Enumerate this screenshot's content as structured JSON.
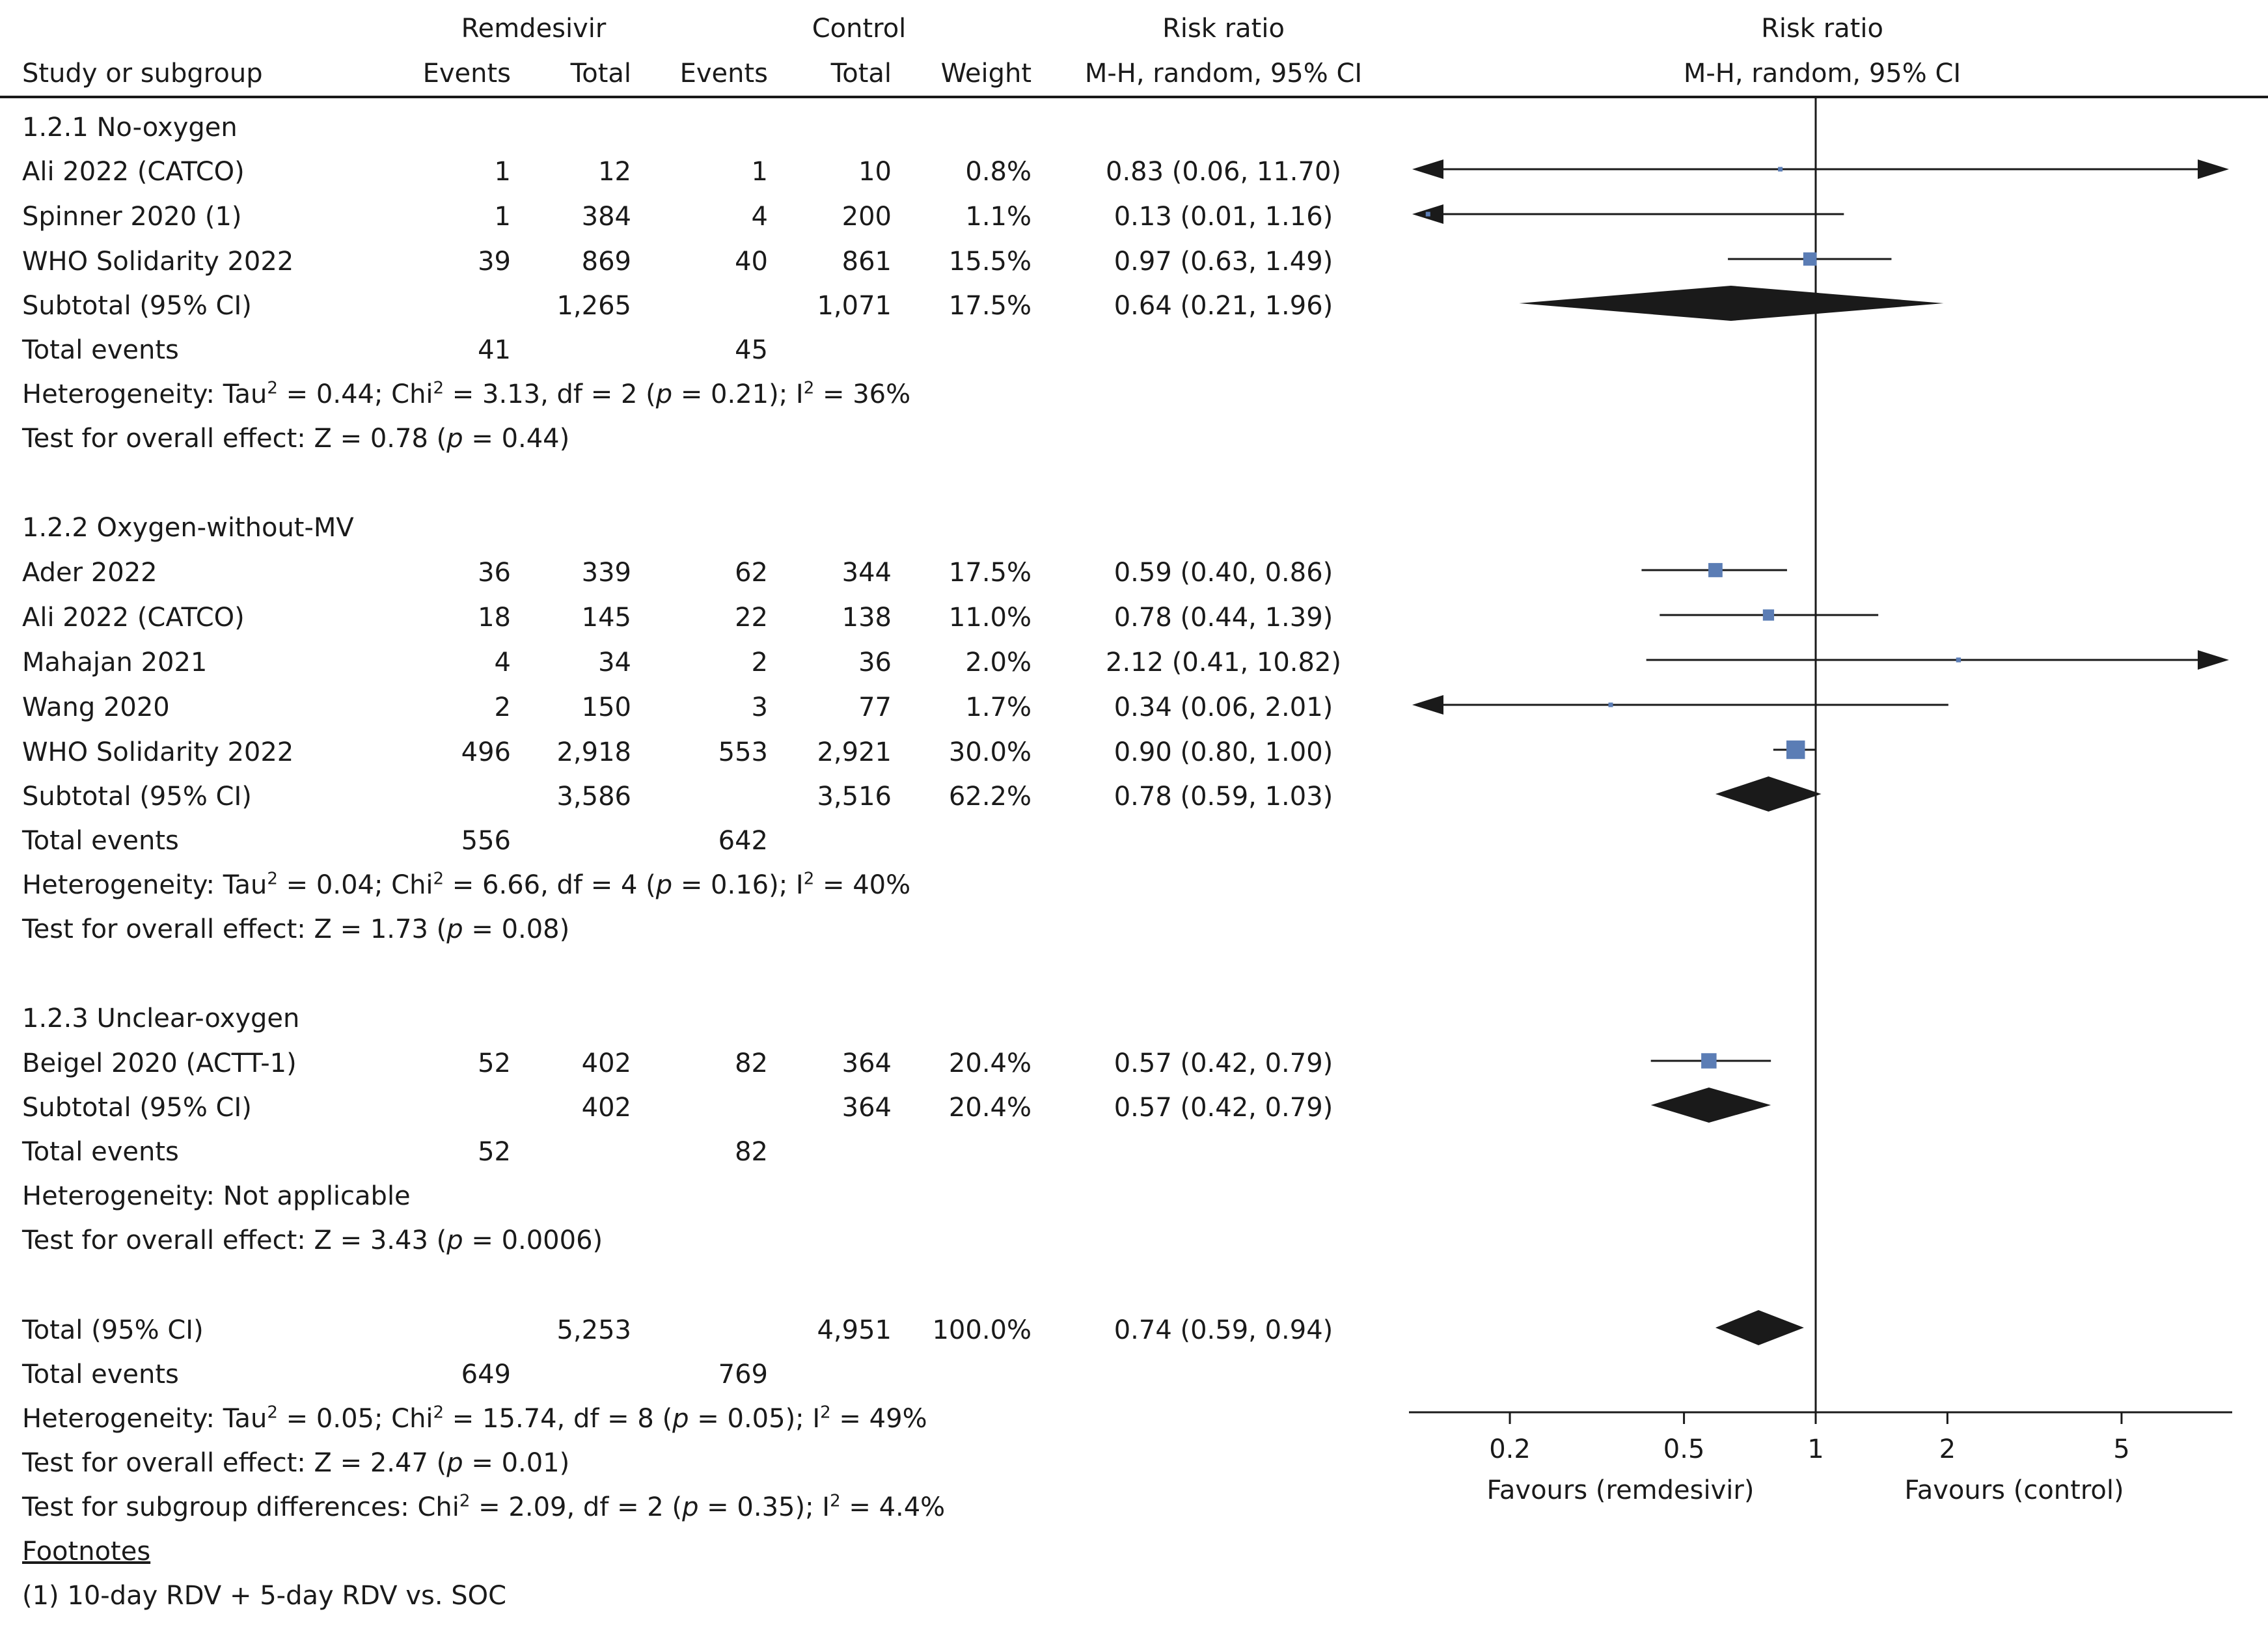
{
  "headers": {
    "remdesivir": "Remdesivir",
    "control": "Control",
    "risk_ratio_table": "Risk ratio",
    "risk_ratio_plot": "Risk ratio",
    "study": "Study or subgroup",
    "events1": "Events",
    "total1": "Total",
    "events2": "Events",
    "total2": "Total",
    "weight": "Weight",
    "method_table": "M-H, random, 95% CI",
    "method_plot": "M-H, random, 95% CI"
  },
  "groups": [
    {
      "title": "1.2.1 No-oxygen",
      "studies": [
        {
          "name": "Ali 2022 (CATCO)",
          "e1": "1",
          "t1": "12",
          "e2": "1",
          "t2": "10",
          "weight": "0.8%",
          "ci": "0.83 (0.06, 11.70)"
        },
        {
          "name": "Spinner 2020 (1)",
          "e1": "1",
          "t1": "384",
          "e2": "4",
          "t2": "200",
          "weight": "1.1%",
          "ci": "0.13 (0.01, 1.16)"
        },
        {
          "name": "WHO Solidarity 2022",
          "e1": "39",
          "t1": "869",
          "e2": "40",
          "t2": "861",
          "weight": "15.5%",
          "ci": "0.97 (0.63, 1.49)"
        }
      ],
      "subtotal": {
        "label": "Subtotal (95% CI)",
        "t1": "1,265",
        "t2": "1,071",
        "weight": "17.5%",
        "ci": "0.64 (0.21, 1.96)"
      },
      "total_events": {
        "label": "Total events",
        "e1": "41",
        "e2": "45"
      },
      "heterogeneity": {
        "prefix": "Heterogeneity: Tau",
        "a": " = 0.44; Chi",
        "b": " = 3.13, df = 2 (",
        "p": "p",
        "c": " = 0.21); I",
        "d": " = 36%"
      },
      "overall": {
        "prefix": "Test for overall effect: Z = 0.78 (",
        "p": "p",
        "suffix": " = 0.44)"
      }
    },
    {
      "title": "1.2.2 Oxygen-without-MV",
      "studies": [
        {
          "name": "Ader 2022",
          "e1": "36",
          "t1": "339",
          "e2": "62",
          "t2": "344",
          "weight": "17.5%",
          "ci": "0.59 (0.40, 0.86)"
        },
        {
          "name": "Ali 2022 (CATCO)",
          "e1": "18",
          "t1": "145",
          "e2": "22",
          "t2": "138",
          "weight": "11.0%",
          "ci": "0.78 (0.44, 1.39)"
        },
        {
          "name": "Mahajan 2021",
          "e1": "4",
          "t1": "34",
          "e2": "2",
          "t2": "36",
          "weight": "2.0%",
          "ci": "2.12 (0.41, 10.82)"
        },
        {
          "name": "Wang 2020",
          "e1": "2",
          "t1": "150",
          "e2": "3",
          "t2": "77",
          "weight": "1.7%",
          "ci": "0.34 (0.06, 2.01)"
        },
        {
          "name": "WHO Solidarity 2022",
          "e1": "496",
          "t1": "2,918",
          "e2": "553",
          "t2": "2,921",
          "weight": "30.0%",
          "ci": "0.90 (0.80, 1.00)"
        }
      ],
      "subtotal": {
        "label": "Subtotal (95% CI)",
        "t1": "3,586",
        "t2": "3,516",
        "weight": "62.2%",
        "ci": "0.78 (0.59, 1.03)"
      },
      "total_events": {
        "label": "Total events",
        "e1": "556",
        "e2": "642"
      },
      "heterogeneity": {
        "prefix": "Heterogeneity: Tau",
        "a": " = 0.04; Chi",
        "b": " = 6.66, df = 4 (",
        "p": "p",
        "c": " = 0.16); I",
        "d": " = 40%"
      },
      "overall": {
        "prefix": "Test for overall effect: Z = 1.73 (",
        "p": "p",
        "suffix": " = 0.08)"
      }
    },
    {
      "title": "1.2.3 Unclear-oxygen",
      "studies": [
        {
          "name": "Beigel 2020 (ACTT-1)",
          "e1": "52",
          "t1": "402",
          "e2": "82",
          "t2": "364",
          "weight": "20.4%",
          "ci": "0.57 (0.42, 0.79)"
        }
      ],
      "subtotal": {
        "label": "Subtotal (95% CI)",
        "t1": "402",
        "t2": "364",
        "weight": "20.4%",
        "ci": "0.57 (0.42, 0.79)"
      },
      "total_events": {
        "label": "Total events",
        "e1": "52",
        "e2": "82"
      },
      "heterogeneity_text": "Heterogeneity: Not applicable",
      "overall": {
        "prefix": "Test for overall effect: Z = 3.43 (",
        "p": "p",
        "suffix": " = 0.0006)"
      }
    }
  ],
  "total": {
    "label": "Total (95% CI)",
    "t1": "5,253",
    "t2": "4,951",
    "weight": "100.0%",
    "ci": "0.74 (0.59, 0.94)"
  },
  "total_events": {
    "label": "Total events",
    "e1": "649",
    "e2": "769"
  },
  "total_heterogeneity": {
    "prefix": "Heterogeneity: Tau",
    "a": " = 0.05; Chi",
    "b": " = 15.74, df = 8 (",
    "p": "p",
    "c": " = 0.05); I",
    "d": " = 49%"
  },
  "total_overall": {
    "prefix": "Test for overall effect: Z = 2.47 (",
    "p": "p",
    "suffix": " = 0.01)"
  },
  "subgroup_diff": {
    "prefix": "Test for subgroup differences: Chi",
    "a": " = 2.09, df = 2 (",
    "p": "p",
    "b": " = 0.35); I",
    "c": " = 4.4%"
  },
  "sup2": "2",
  "footnotes": {
    "label": "Footnotes",
    "items": [
      "(1) 10-day RDV + 5-day RDV vs. SOC"
    ]
  },
  "chart_data": {
    "type": "forest",
    "scale": "log",
    "xlim": [
      0.1,
      10
    ],
    "ticks": [
      0.2,
      0.5,
      1,
      2,
      5
    ],
    "tick_labels": [
      "0.2",
      "0.5",
      "1",
      "2",
      "5"
    ],
    "favours_left": "Favours (remdesivir)",
    "favours_right": "Favours (control)",
    "colors": {
      "square": "#5b7db5",
      "diamond": "#1a1a1a",
      "line": "#1a1a1a"
    },
    "studies": [
      {
        "group": 0,
        "rr": 0.83,
        "lo": 0.06,
        "hi": 11.7,
        "weight": 0.8
      },
      {
        "group": 0,
        "rr": 0.13,
        "lo": 0.01,
        "hi": 1.16,
        "weight": 1.1
      },
      {
        "group": 0,
        "rr": 0.97,
        "lo": 0.63,
        "hi": 1.49,
        "weight": 15.5
      },
      {
        "group": 1,
        "rr": 0.59,
        "lo": 0.4,
        "hi": 0.86,
        "weight": 17.5
      },
      {
        "group": 1,
        "rr": 0.78,
        "lo": 0.44,
        "hi": 1.39,
        "weight": 11.0
      },
      {
        "group": 1,
        "rr": 2.12,
        "lo": 0.41,
        "hi": 10.82,
        "weight": 2.0
      },
      {
        "group": 1,
        "rr": 0.34,
        "lo": 0.06,
        "hi": 2.01,
        "weight": 1.7
      },
      {
        "group": 1,
        "rr": 0.9,
        "lo": 0.8,
        "hi": 1.0,
        "weight": 30.0
      },
      {
        "group": 2,
        "rr": 0.57,
        "lo": 0.42,
        "hi": 0.79,
        "weight": 20.4
      }
    ],
    "diamonds": [
      {
        "label": "Subtotal 1.2.1",
        "rr": 0.64,
        "lo": 0.21,
        "hi": 1.96
      },
      {
        "label": "Subtotal 1.2.2",
        "rr": 0.78,
        "lo": 0.59,
        "hi": 1.03
      },
      {
        "label": "Subtotal 1.2.3",
        "rr": 0.57,
        "lo": 0.42,
        "hi": 0.79
      },
      {
        "label": "Total",
        "rr": 0.74,
        "lo": 0.59,
        "hi": 0.94
      }
    ]
  }
}
